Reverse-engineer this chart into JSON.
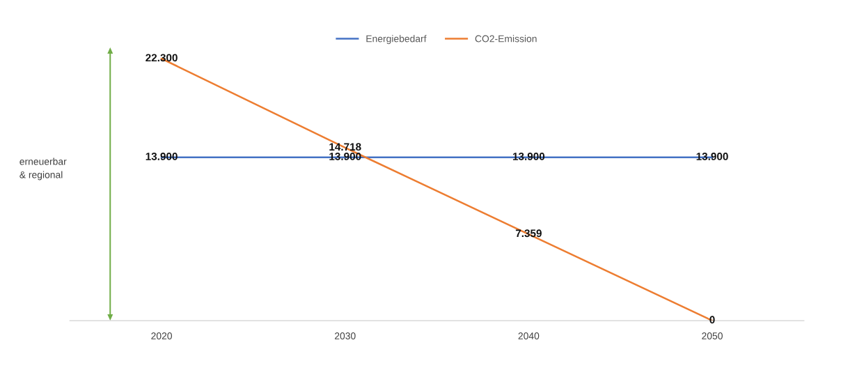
{
  "chart_data": {
    "type": "line",
    "categories": [
      "2020",
      "2030",
      "2040",
      "2050"
    ],
    "series": [
      {
        "name": "Energiebedarf",
        "color": "#4472c4",
        "values": [
          13900,
          13900,
          13900,
          13900
        ],
        "value_labels": [
          "13.900",
          "13.900",
          "13.900",
          "13.900"
        ]
      },
      {
        "name": "CO2-Emission",
        "color": "#ed7d31",
        "values": [
          22300,
          14718,
          7359,
          0
        ],
        "value_labels": [
          "22.300",
          "14.718",
          "7.359",
          "0"
        ]
      }
    ],
    "annotations": [
      "erneuerbar\n& regional"
    ],
    "legend": "top",
    "grid": false,
    "marker": "none",
    "line_style": "solid",
    "tick_labels": "x"
  }
}
